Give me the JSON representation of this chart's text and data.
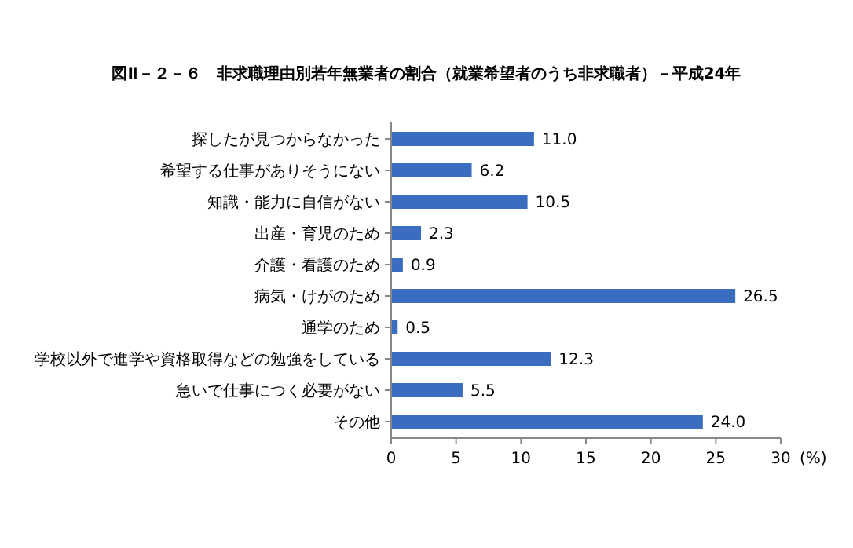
{
  "chart_data": {
    "type": "bar",
    "orientation": "horizontal",
    "title": "図Ⅱ－２－６　非求職理由別若年無業者の割合（就業希望者のうち非求職者）－平成24年",
    "xlabel": "(%)",
    "categories": [
      "探したが見つからなかった",
      "希望する仕事がありそうにない",
      "知識・能力に自信がない",
      "出産・育児のため",
      "介護・看護のため",
      "病気・けがのため",
      "通学のため",
      "学校以外で進学や資格取得などの勉強をしている",
      "急いで仕事につく必要がない",
      "その他"
    ],
    "values": [
      11.0,
      6.2,
      10.5,
      2.3,
      0.9,
      26.5,
      0.5,
      12.3,
      5.5,
      24.0
    ],
    "value_labels": [
      "11.0",
      "6.2",
      "10.5",
      "2.3",
      "0.9",
      "26.5",
      "0.5",
      "12.3",
      "5.5",
      "24.0"
    ],
    "color": "#3a6cc0",
    "xlim": [
      0,
      30
    ],
    "xticks": [
      0,
      5,
      10,
      15,
      20,
      25,
      30
    ],
    "grid": false
  }
}
